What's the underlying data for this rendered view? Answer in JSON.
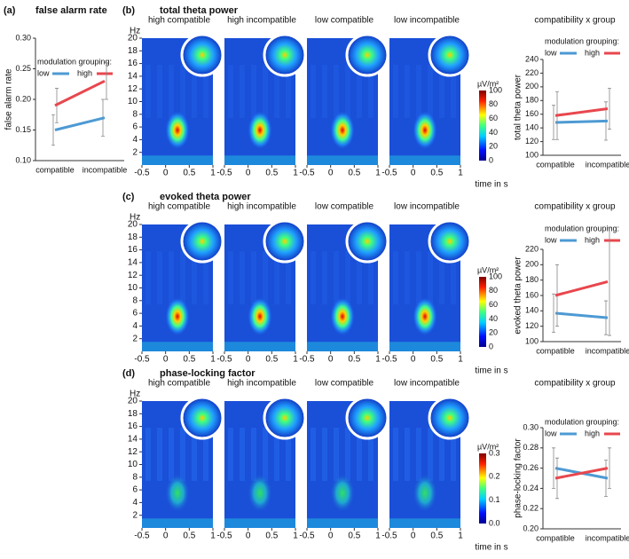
{
  "chart_data": [
    {
      "type": "line",
      "panel": "(a)",
      "title": "false alarm rate",
      "ylabel": "false alarm rate",
      "legend_title": "modulation grouping:",
      "categories": [
        "compatible",
        "incompatible"
      ],
      "series": [
        {
          "name": "low",
          "color": "#4d9ad3",
          "values": [
            0.15,
            0.17
          ],
          "errors": [
            0.025,
            0.03
          ]
        },
        {
          "name": "high",
          "color": "#e8474e",
          "values": [
            0.19,
            0.23
          ],
          "errors": [
            0.028,
            0.03
          ]
        }
      ],
      "ylim": [
        0.1,
        0.3
      ],
      "yticks": [
        {
          "value": 0.1,
          "label": "0.10"
        },
        {
          "value": 0.15,
          "label": "0.15"
        },
        {
          "value": 0.2,
          "label": "0.20"
        },
        {
          "value": 0.25,
          "label": "0.25"
        },
        {
          "value": 0.3,
          "label": "0.30"
        }
      ]
    },
    {
      "type": "heatmap",
      "panel": "(b)",
      "title": "total theta power",
      "subtitles": [
        "high compatible",
        "high incompatible",
        "low compatible",
        "low incompatible"
      ],
      "ylabel": "Hz",
      "xlabel": "time in s",
      "xlim": [
        -0.5,
        1
      ],
      "xticks": [
        -0.5,
        0,
        0.5,
        1
      ],
      "ylim": [
        0,
        20
      ],
      "yticks": [
        2,
        4,
        6,
        8,
        10,
        12,
        14,
        16,
        18,
        20
      ],
      "colorbar_label": "µV/m²",
      "clim": [
        0,
        100
      ],
      "cticks": [
        0,
        20,
        40,
        60,
        80,
        100
      ]
    },
    {
      "type": "line",
      "title": "compatibility x group",
      "ylabel": "total theta power",
      "legend_title": "modulation grouping:",
      "categories": [
        "compatible",
        "incompatible"
      ],
      "series": [
        {
          "name": "low",
          "color": "#4d9ad3",
          "values": [
            148,
            150
          ],
          "errors": [
            25,
            28
          ]
        },
        {
          "name": "high",
          "color": "#e8474e",
          "values": [
            158,
            168
          ],
          "errors": [
            35,
            30
          ]
        }
      ],
      "ylim": [
        100,
        240
      ],
      "yticks": [
        100,
        120,
        140,
        160,
        180,
        200,
        220,
        240
      ]
    },
    {
      "type": "heatmap",
      "panel": "(c)",
      "title": "evoked theta power",
      "subtitles": [
        "high compatible",
        "high incompatible",
        "low compatible",
        "low incompatible"
      ],
      "ylabel": "Hz",
      "xlabel": "time in s",
      "xlim": [
        -0.5,
        1
      ],
      "xticks": [
        -0.5,
        0,
        0.5,
        1
      ],
      "ylim": [
        0,
        20
      ],
      "yticks": [
        2,
        4,
        6,
        8,
        10,
        12,
        14,
        16,
        18,
        20
      ],
      "colorbar_label": "µV/m²",
      "clim": [
        0,
        100
      ],
      "cticks": [
        0,
        20,
        40,
        60,
        80,
        100
      ]
    },
    {
      "type": "line",
      "title": "compatibility x group",
      "ylabel": "evoked theta power",
      "legend_title": "modulation grouping:",
      "categories": [
        "compatible",
        "incompatible"
      ],
      "series": [
        {
          "name": "low",
          "color": "#4d9ad3",
          "values": [
            137,
            131
          ],
          "errors": [
            25,
            22
          ]
        },
        {
          "name": "high",
          "color": "#e8474e",
          "values": [
            160,
            178
          ],
          "errors": [
            40,
            70
          ]
        }
      ],
      "ylim": [
        100,
        220
      ],
      "yticks": [
        100,
        120,
        140,
        160,
        180,
        200,
        220
      ]
    },
    {
      "type": "heatmap",
      "panel": "(d)",
      "title": "phase-locking factor",
      "subtitles": [
        "high compatible",
        "high incompatible",
        "low compatible",
        "low incompatible"
      ],
      "ylabel": "Hz",
      "xlabel": "time in s",
      "xlim": [
        -0.5,
        1
      ],
      "xticks": [
        -0.5,
        0,
        0.5,
        1
      ],
      "ylim": [
        0,
        20
      ],
      "yticks": [
        2,
        4,
        6,
        8,
        10,
        12,
        14,
        16,
        18,
        20
      ],
      "colorbar_label": "µV/m²",
      "clim": [
        0,
        0.3
      ],
      "cticks": [
        {
          "value": 0,
          "label": "0.0"
        },
        {
          "value": 0.1,
          "label": "0.1"
        },
        {
          "value": 0.2,
          "label": "0.2"
        },
        {
          "value": 0.3,
          "label": "0.3"
        }
      ]
    },
    {
      "type": "line",
      "title": "compatibility x group",
      "ylabel": "phase-locking factor",
      "legend_title": "modulation grouping:",
      "categories": [
        "compatible",
        "incompatible"
      ],
      "series": [
        {
          "name": "low",
          "color": "#4d9ad3",
          "values": [
            0.26,
            0.25
          ],
          "errors": [
            0.02,
            0.018
          ]
        },
        {
          "name": "high",
          "color": "#e8474e",
          "values": [
            0.25,
            0.26
          ],
          "errors": [
            0.02,
            0.02
          ]
        }
      ],
      "ylim": [
        0.2,
        0.3
      ],
      "yticks": [
        {
          "value": 0.2,
          "label": "0.20"
        },
        {
          "value": 0.22,
          "label": "0.22"
        },
        {
          "value": 0.24,
          "label": "0.24"
        },
        {
          "value": 0.26,
          "label": "0.26"
        },
        {
          "value": 0.28,
          "label": "0.28"
        },
        {
          "value": 0.3,
          "label": "0.30"
        }
      ]
    }
  ]
}
